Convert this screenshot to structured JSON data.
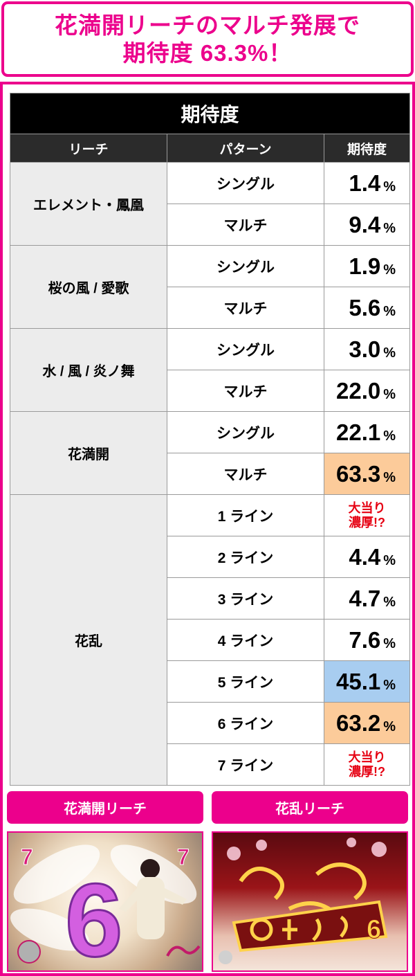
{
  "headline": {
    "line1": "花満開リーチのマルチ発展で",
    "line2": "期待度 63.3%！"
  },
  "table": {
    "title": "期待度",
    "headers": [
      "リーチ",
      "パターン",
      "期待度"
    ],
    "percent": "%",
    "jackpot_line1": "大当り",
    "jackpot_line2": "濃厚!?",
    "groups": [
      {
        "reach": "エレメント・鳳凰",
        "rows": [
          {
            "pattern": "シングル",
            "value": "1.4"
          },
          {
            "pattern": "マルチ",
            "value": "9.4"
          }
        ]
      },
      {
        "reach": "桜の風 / 愛歌",
        "rows": [
          {
            "pattern": "シングル",
            "value": "1.9"
          },
          {
            "pattern": "マルチ",
            "value": "5.6"
          }
        ]
      },
      {
        "reach": "水 / 風 / 炎ノ舞",
        "rows": [
          {
            "pattern": "シングル",
            "value": "3.0"
          },
          {
            "pattern": "マルチ",
            "value": "22.0"
          }
        ]
      },
      {
        "reach": "花満開",
        "rows": [
          {
            "pattern": "シングル",
            "value": "22.1"
          },
          {
            "pattern": "マルチ",
            "value": "63.3",
            "highlight": "#fccb9a"
          }
        ]
      },
      {
        "reach": "花乱",
        "rows": [
          {
            "pattern": "1 ライン",
            "value": null
          },
          {
            "pattern": "2 ライン",
            "value": "4.4"
          },
          {
            "pattern": "3 ライン",
            "value": "4.7"
          },
          {
            "pattern": "4 ライン",
            "value": "7.6"
          },
          {
            "pattern": "5 ライン",
            "value": "45.1",
            "highlight": "#a8cdf0"
          },
          {
            "pattern": "6 ライン",
            "value": "63.2",
            "highlight": "#fccb9a"
          },
          {
            "pattern": "7 ライン",
            "value": null
          }
        ]
      }
    ]
  },
  "panels": [
    {
      "title": "花満開リーチ",
      "image_icon": "game-screen-image"
    },
    {
      "title": "花乱リーチ",
      "image_icon": "game-screen-image"
    }
  ],
  "colors": {
    "accent": "#ec008c",
    "jackpot_text": "#e60012"
  }
}
